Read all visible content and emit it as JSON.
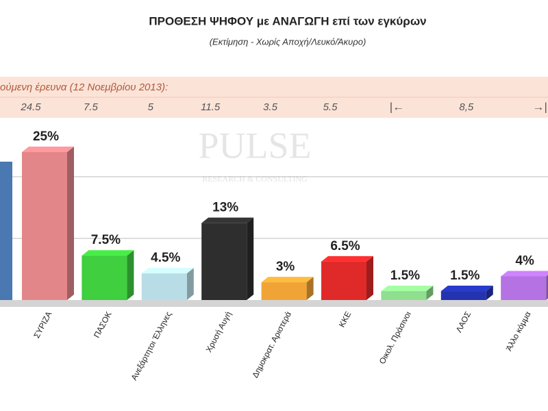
{
  "chart_data": {
    "type": "bar3d",
    "title": "ΠΡΟΘΕΣΗ ΨΗΦΟΥ με ΑΝΑΓΩΓΗ επί των εγκύρων",
    "subtitle": "(Εκτίμηση  -  Χωρίς Αποχή/Λευκό/Άκυρο)",
    "watermark": {
      "name": "PULSE",
      "tagline": "RESEARCH & CONSULTING"
    },
    "categories": [
      "ΣΥΡΙΖΑ",
      "ΠΑΣΟΚ",
      "Ανεξάρτητοι Έλληνες",
      "Χρυσή Αυγή",
      "Δημοκρατ. Αριστερά",
      "ΚΚΕ",
      "Οικολ. Πράσινοι",
      "ΛΑΟΣ",
      "Άλλο κόμμα"
    ],
    "values": [
      25,
      7.5,
      4.5,
      13,
      3,
      6.5,
      1.5,
      1.5,
      4
    ],
    "value_labels": [
      "25%",
      "7.5%",
      "4.5%",
      "13%",
      "3%",
      "6.5%",
      "1.5%",
      "1.5%",
      "4%"
    ],
    "colors": [
      "#e3868a",
      "#3fcf3f",
      "#b9dde6",
      "#2e2e2e",
      "#f0a436",
      "#e02a2a",
      "#8fdf8f",
      "#2433b0",
      "#b472e2"
    ],
    "previous": {
      "label": "ούμενη έρευνα (12 Νοεμβρίου 2013):",
      "values": [
        24.5,
        7.5,
        5,
        11.5,
        3.5,
        5.5
      ],
      "combined": {
        "value": 8.5,
        "label": "8,5"
      },
      "arrows": [
        "|←",
        "→|"
      ]
    }
  }
}
